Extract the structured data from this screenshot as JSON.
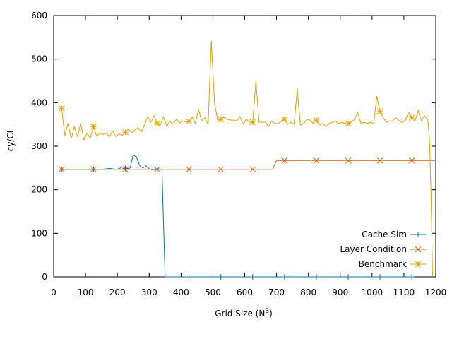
{
  "chart_data": {
    "type": "line",
    "xlabel": "Grid Size (N",
    "xlabel_sup": "3",
    "xlabel_end": ")",
    "ylabel": "cy/CL",
    "xlim": [
      0,
      1200
    ],
    "ylim": [
      0,
      600
    ],
    "xticks": [
      0,
      100,
      200,
      300,
      400,
      500,
      600,
      700,
      800,
      900,
      1000,
      1100,
      1200
    ],
    "yticks": [
      0,
      100,
      200,
      300,
      400,
      500,
      600
    ],
    "grid": false,
    "legend_position": "bottom-right",
    "series": [
      {
        "name": "Cache Sim",
        "color": "#0072b2",
        "marker": "plus",
        "marker_x": [
          25,
          125,
          225,
          325,
          425,
          525,
          625,
          725,
          825,
          925,
          1025,
          1125
        ],
        "x": [
          25,
          50,
          75,
          100,
          125,
          150,
          175,
          200,
          210,
          215,
          220,
          225,
          230,
          240,
          250,
          260,
          270,
          280,
          290,
          300,
          310,
          320,
          330,
          340,
          350,
          360,
          425,
          525,
          625,
          725,
          825,
          925,
          1025,
          1125
        ],
        "y": [
          247,
          247,
          247,
          247,
          247,
          247,
          249,
          247,
          250,
          252,
          253,
          249,
          248,
          250,
          280,
          275,
          256,
          250,
          255,
          248,
          246,
          247,
          248,
          247,
          0,
          0,
          0,
          0,
          0,
          0,
          0,
          0,
          0,
          0
        ]
      },
      {
        "name": "Layer Condition",
        "color": "#d55e00",
        "marker": "cross",
        "marker_x": [
          25,
          125,
          225,
          325,
          425,
          525,
          625,
          725,
          825,
          925,
          1025,
          1125
        ],
        "x": [
          25,
          100,
          200,
          300,
          400,
          500,
          600,
          687,
          700,
          725,
          800,
          900,
          1000,
          1100,
          1200
        ],
        "y": [
          247,
          247,
          247,
          247,
          247,
          247,
          247,
          247,
          267,
          267,
          267,
          267,
          267,
          267,
          267
        ]
      },
      {
        "name": "Benchmark",
        "color": "#e69f00",
        "marker": "star",
        "marker_x": [
          25,
          125,
          225,
          325,
          425,
          525,
          625,
          725,
          825,
          925,
          1025,
          1125
        ],
        "x": [
          25,
          35,
          45,
          55,
          65,
          75,
          85,
          95,
          105,
          115,
          125,
          135,
          145,
          155,
          165,
          175,
          185,
          195,
          205,
          215,
          225,
          235,
          245,
          255,
          265,
          275,
          285,
          295,
          305,
          315,
          325,
          335,
          345,
          355,
          365,
          375,
          385,
          395,
          405,
          415,
          425,
          435,
          445,
          455,
          465,
          475,
          485,
          495,
          505,
          515,
          525,
          535,
          545,
          555,
          565,
          575,
          585,
          595,
          605,
          615,
          625,
          635,
          645,
          655,
          665,
          675,
          685,
          695,
          705,
          715,
          725,
          735,
          745,
          755,
          765,
          775,
          785,
          795,
          805,
          815,
          825,
          835,
          845,
          855,
          865,
          875,
          885,
          895,
          905,
          915,
          925,
          935,
          945,
          955,
          965,
          975,
          985,
          995,
          1005,
          1015,
          1025,
          1035,
          1045,
          1055,
          1065,
          1075,
          1085,
          1095,
          1105,
          1115,
          1125,
          1135,
          1145,
          1155,
          1165,
          1175,
          1180,
          1185,
          1190
        ],
        "y": [
          387,
          325,
          352,
          318,
          345,
          322,
          352,
          315,
          330,
          318,
          345,
          323,
          330,
          327,
          330,
          322,
          335,
          322,
          328,
          325,
          332,
          340,
          330,
          338,
          342,
          333,
          348,
          368,
          355,
          370,
          352,
          348,
          368,
          345,
          358,
          350,
          362,
          353,
          358,
          355,
          357,
          368,
          352,
          385,
          358,
          365,
          350,
          542,
          400,
          360,
          362,
          367,
          362,
          360,
          360,
          358,
          368,
          350,
          362,
          355,
          355,
          450,
          355,
          355,
          355,
          345,
          358,
          352,
          352,
          358,
          362,
          350,
          355,
          350,
          433,
          348,
          352,
          362,
          360,
          352,
          360,
          348,
          352,
          345,
          352,
          355,
          358,
          352,
          355,
          352,
          352,
          355,
          362,
          378,
          352,
          355,
          352,
          355,
          352,
          415,
          380,
          365,
          355,
          358,
          358,
          365,
          358,
          355,
          360,
          378,
          365,
          358,
          382,
          358,
          370,
          362,
          320,
          200,
          0
        ]
      }
    ]
  }
}
